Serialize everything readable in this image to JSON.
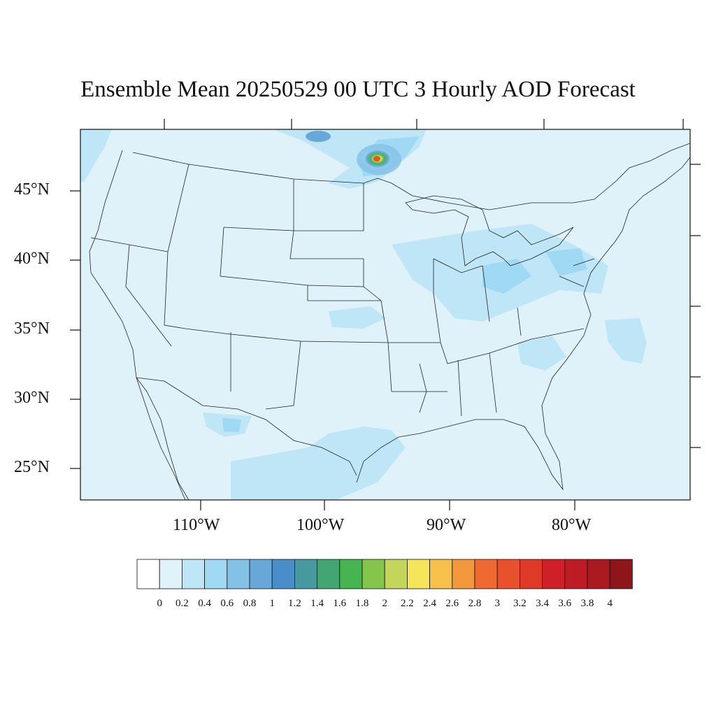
{
  "title": "Ensemble Mean 20250529 00 UTC 3 Hourly AOD Forecast",
  "lat_labels": [
    "45°N",
    "40°N",
    "35°N",
    "30°N",
    "25°N"
  ],
  "lon_labels": [
    "110°W",
    "100°W",
    "90°W",
    "80°W"
  ],
  "colorbar": {
    "labels": [
      "0",
      "0.2",
      "0.4",
      "0.6",
      "0.8",
      "1",
      "1.2",
      "1.4",
      "1.6",
      "1.8",
      "2",
      "2.2",
      "2.4",
      "2.6",
      "2.8",
      "3",
      "3.2",
      "3.4",
      "3.6",
      "3.8",
      "4"
    ],
    "colors": [
      "#ffffff",
      "#e0f3fb",
      "#bee6f7",
      "#9fd9f3",
      "#83c1e6",
      "#67a8d9",
      "#4a8ec9",
      "#46999e",
      "#43a572",
      "#46b450",
      "#86c54c",
      "#c3d65b",
      "#f4e55a",
      "#f6c04a",
      "#f3973d",
      "#ee6a30",
      "#e7512b",
      "#df3a27",
      "#d02027",
      "#bd1c25",
      "#a9191f",
      "#8e1519"
    ]
  },
  "map": {
    "background_color": "#dff2fa",
    "aod_plumes": [
      {
        "label": "smoke plume over Manitoba/Ontario border",
        "peak_aod": 3.0
      },
      {
        "label": "haze over Ohio Valley",
        "peak_aod": 0.4
      },
      {
        "label": "haze off Carolina coast",
        "peak_aod": 0.4
      },
      {
        "label": "haze over Mexico",
        "peak_aod": 0.4
      }
    ]
  }
}
